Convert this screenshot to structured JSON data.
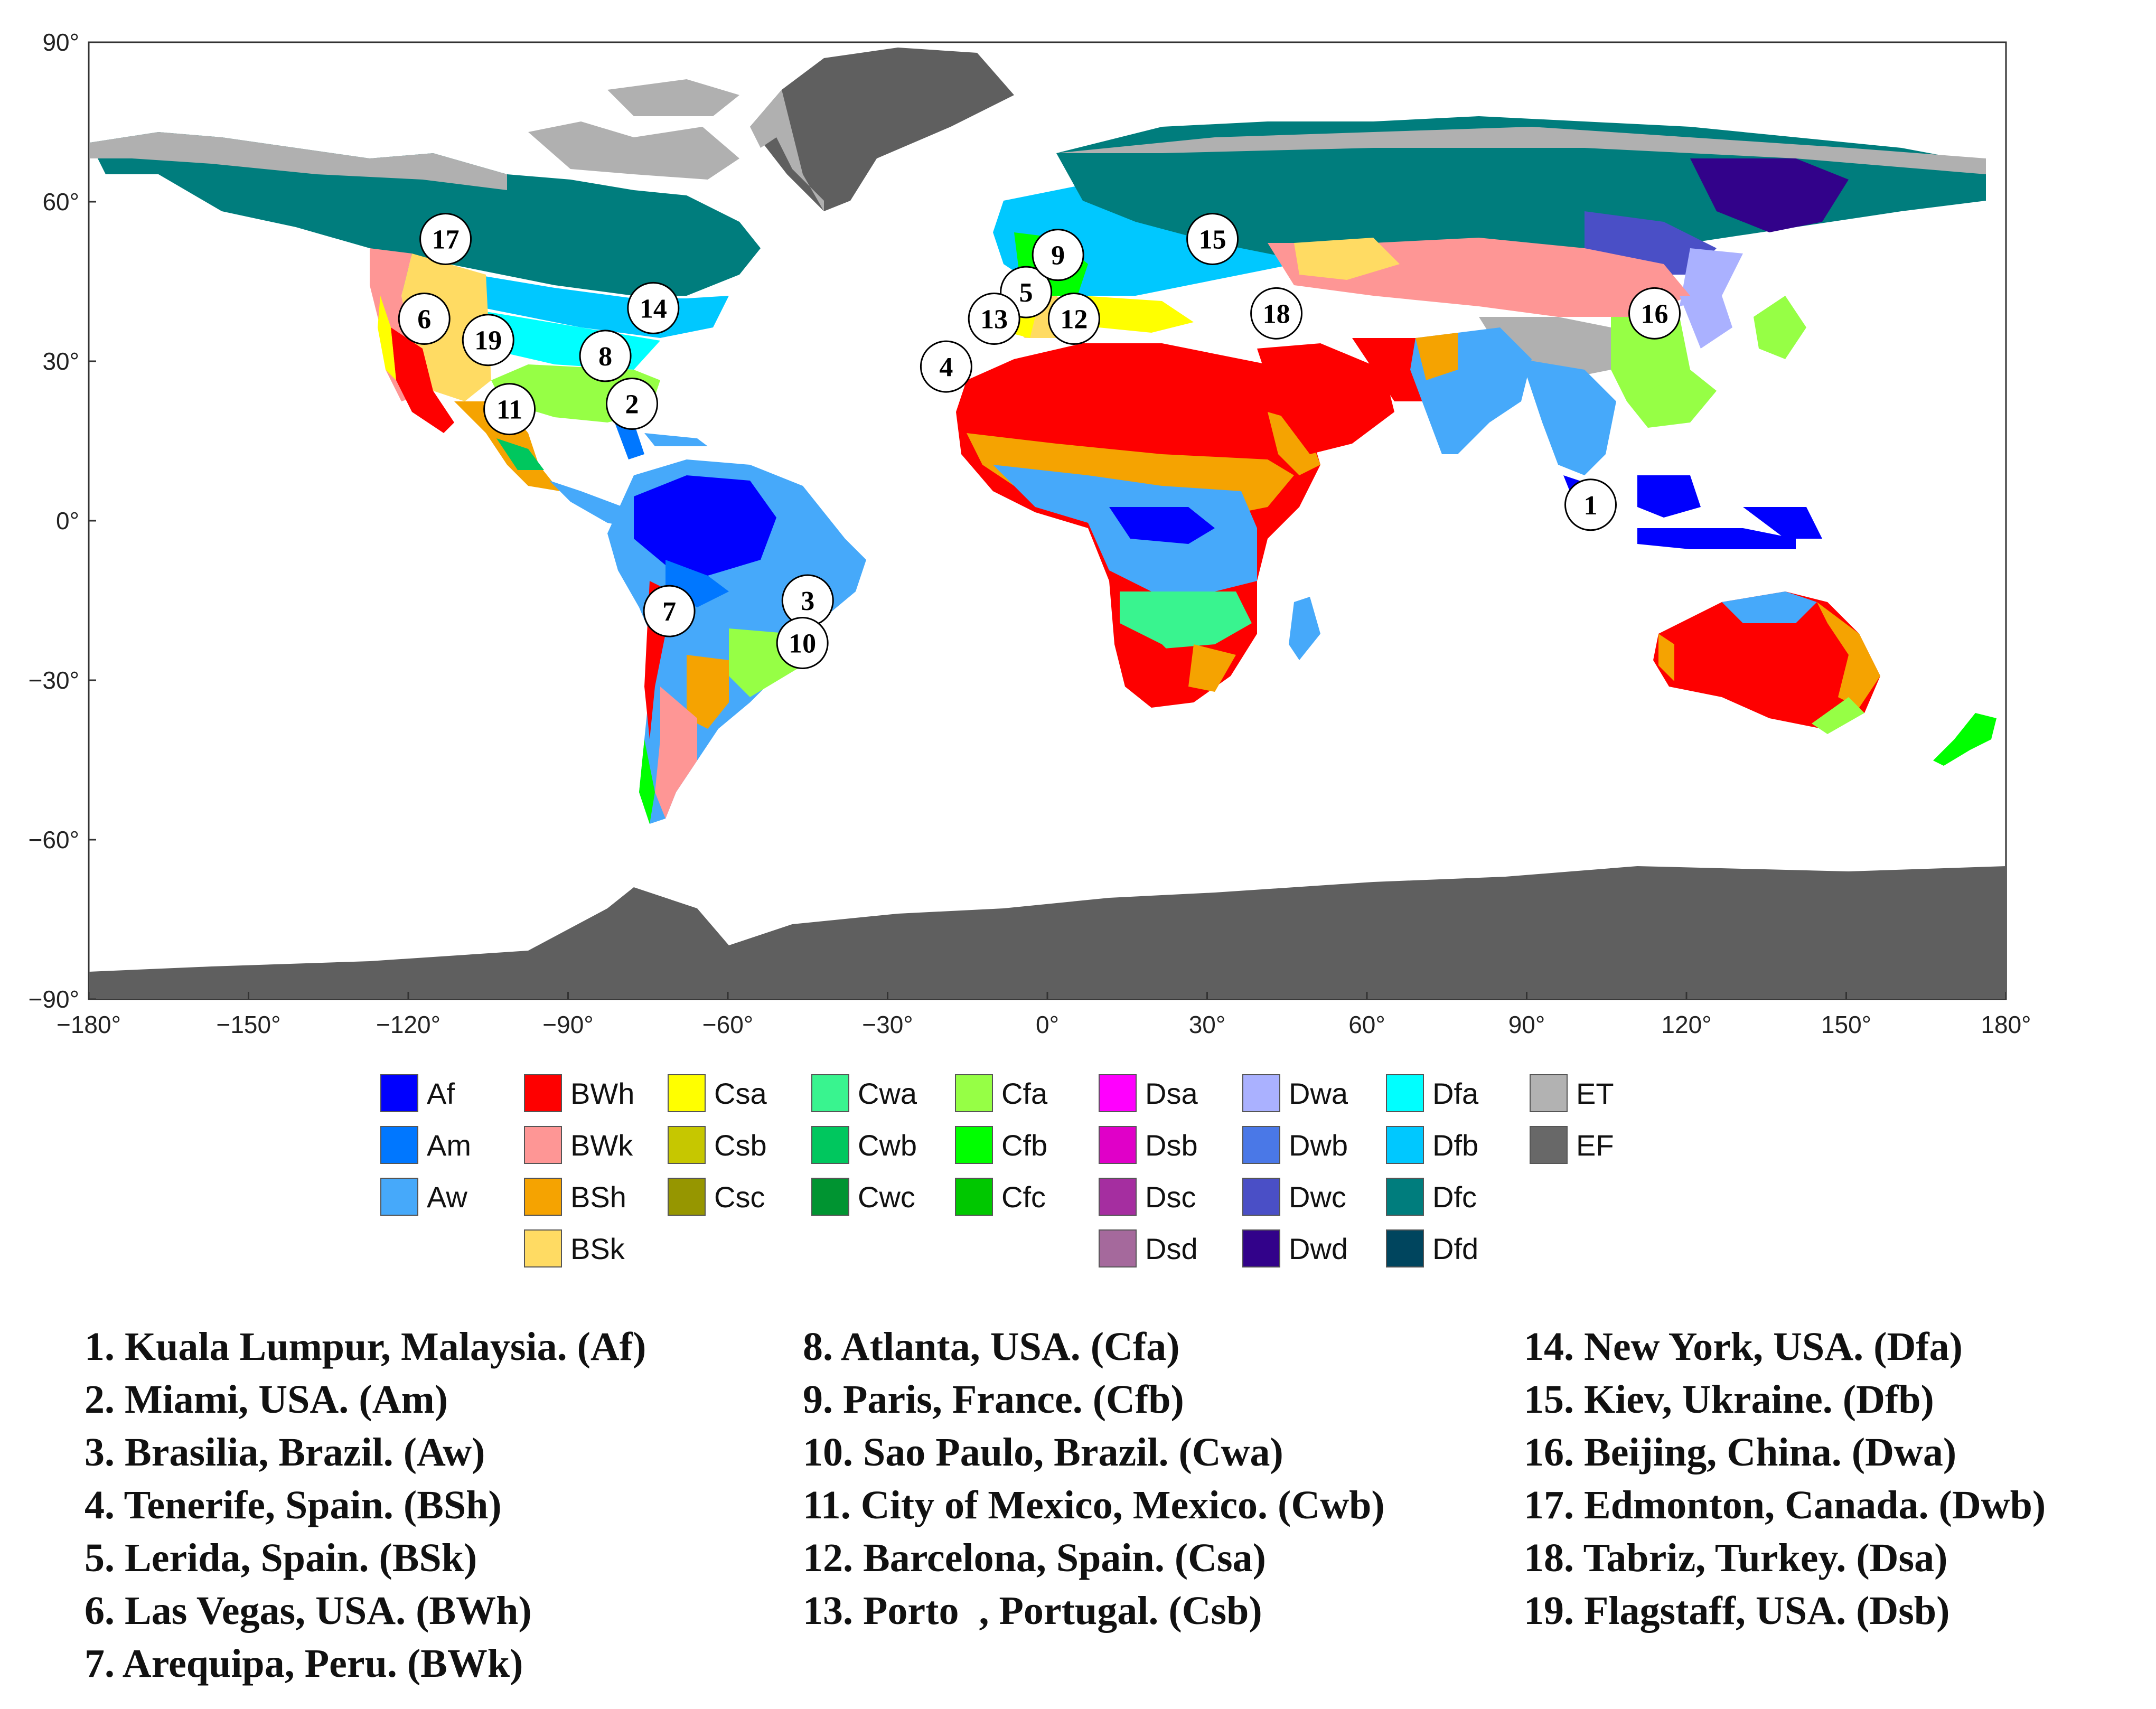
{
  "map": {
    "lat_ticks": [
      "90°",
      "60°",
      "30°",
      "0°",
      "−30°",
      "−60°",
      "−90°"
    ],
    "lon_ticks": [
      "−180°",
      "−150°",
      "−120°",
      "−90°",
      "−60°",
      "−30°",
      "0°",
      "30°",
      "60°",
      "90°",
      "120°",
      "150°",
      "180°"
    ],
    "lat_range": [
      -90,
      90
    ],
    "lon_range": [
      -180,
      180
    ],
    "colors": {
      "ocean": "#ffffff",
      "frame": "#333333",
      "ice": "#5f5f5f",
      "tundra": "#b0b0b0"
    },
    "markers": [
      {
        "label": "1",
        "lon": 102,
        "lat": 3
      },
      {
        "label": "2",
        "lon": -78,
        "lat": 22
      },
      {
        "label": "3",
        "lon": -45,
        "lat": -15
      },
      {
        "label": "4",
        "lon": -19,
        "lat": 29
      },
      {
        "label": "5",
        "lon": -4,
        "lat": 43
      },
      {
        "label": "6",
        "lon": -117,
        "lat": 38
      },
      {
        "label": "7",
        "lon": -71,
        "lat": -17
      },
      {
        "label": "8",
        "lon": -83,
        "lat": 31
      },
      {
        "label": "9",
        "lon": 2,
        "lat": 50
      },
      {
        "label": "10",
        "lon": -46,
        "lat": -23
      },
      {
        "label": "11",
        "lon": -101,
        "lat": 21
      },
      {
        "label": "12",
        "lon": 5,
        "lat": 38
      },
      {
        "label": "13",
        "lon": -10,
        "lat": 38
      },
      {
        "label": "14",
        "lon": -74,
        "lat": 40
      },
      {
        "label": "15",
        "lon": 31,
        "lat": 53
      },
      {
        "label": "16",
        "lon": 114,
        "lat": 39
      },
      {
        "label": "17",
        "lon": -113,
        "lat": 53
      },
      {
        "label": "18",
        "lon": 43,
        "lat": 39
      },
      {
        "label": "19",
        "lon": -105,
        "lat": 34
      }
    ]
  },
  "legend": [
    {
      "code": "Af",
      "color": "#0000fe"
    },
    {
      "code": "Am",
      "color": "#0077ff"
    },
    {
      "code": "Aw",
      "color": "#46a9fa"
    },
    {
      "code": "BWh",
      "color": "#fe0000"
    },
    {
      "code": "BWk",
      "color": "#fe9695"
    },
    {
      "code": "BSh",
      "color": "#f5a301"
    },
    {
      "code": "BSk",
      "color": "#ffdb63"
    },
    {
      "code": "Csa",
      "color": "#ffff00"
    },
    {
      "code": "Csb",
      "color": "#c6c700"
    },
    {
      "code": "Csc",
      "color": "#969600"
    },
    {
      "code": "Cwa",
      "color": "#39f48f"
    },
    {
      "code": "Cwb",
      "color": "#00c75e"
    },
    {
      "code": "Cwc",
      "color": "#009431"
    },
    {
      "code": "Cfa",
      "color": "#96ff45"
    },
    {
      "code": "Cfb",
      "color": "#00ff00"
    },
    {
      "code": "Cfc",
      "color": "#00c700"
    },
    {
      "code": "Dsa",
      "color": "#ff00fe"
    },
    {
      "code": "Dsb",
      "color": "#e000c8"
    },
    {
      "code": "Dsc",
      "color": "#a52ea0"
    },
    {
      "code": "Dsd",
      "color": "#a5699c"
    },
    {
      "code": "Dwa",
      "color": "#aab1ff"
    },
    {
      "code": "Dwb",
      "color": "#4a78e7"
    },
    {
      "code": "Dwc",
      "color": "#4a4fc6"
    },
    {
      "code": "Dwd",
      "color": "#32028a"
    },
    {
      "code": "Dfa",
      "color": "#00ffff"
    },
    {
      "code": "Dfb",
      "color": "#00c8ff"
    },
    {
      "code": "Dfc",
      "color": "#007d7d"
    },
    {
      "code": "Dfd",
      "color": "#00455e"
    },
    {
      "code": "ET",
      "color": "#b2b2b2"
    },
    {
      "code": "EF",
      "color": "#686868"
    }
  ],
  "cities": [
    "1. Kuala Lumpur, Malaysia. (Af)",
    "2. Miami, USA. (Am)",
    "3. Brasilia, Brazil. (Aw)",
    "4. Tenerife, Spain. (BSh)",
    "5. Lerida, Spain. (BSk)",
    "6. Las Vegas, USA. (BWh)",
    "7. Arequipa, Peru. (BWk)",
    "8. Atlanta, USA. (Cfa)",
    "9. Paris, France. (Cfb)",
    "10. Sao Paulo, Brazil. (Cwa)",
    "11. City of Mexico, Mexico. (Cwb)",
    "12. Barcelona, Spain. (Csa)",
    "13. Porto  , Portugal. (Csb)",
    "14. New York, USA. (Dfa)",
    "15. Kiev, Ukraine. (Dfb)",
    "16. Beijing, China. (Dwa)",
    "17. Edmonton, Canada. (Dwb)",
    "18. Tabriz, Turkey. (Dsa)",
    "19. Flagstaff, USA. (Dsb)"
  ]
}
